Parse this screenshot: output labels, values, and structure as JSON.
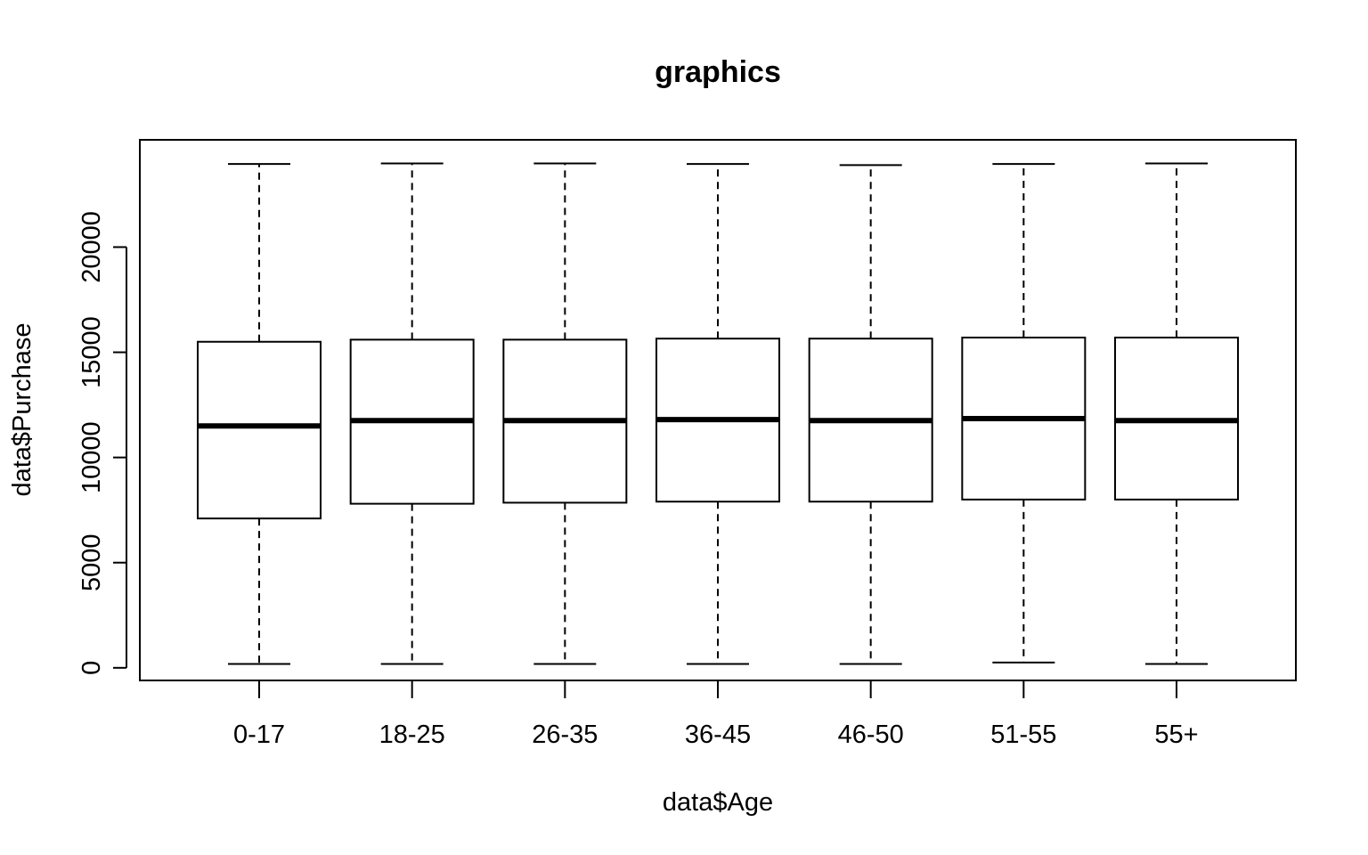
{
  "chart_data": {
    "type": "box",
    "title": "graphics",
    "xlabel": "data$Age",
    "ylabel": "data$Purchase",
    "categories": [
      "0-17",
      "18-25",
      "26-35",
      "36-45",
      "46-50",
      "51-55",
      "55+"
    ],
    "yticks": [
      0,
      5000,
      10000,
      15000,
      20000
    ],
    "ylim": [
      -600,
      25100
    ],
    "boxes": [
      {
        "category": "0-17",
        "whisker_low": 185,
        "q1": 7100,
        "median": 11500,
        "q3": 15500,
        "whisker_high": 23950
      },
      {
        "category": "18-25",
        "whisker_low": 185,
        "q1": 7800,
        "median": 11750,
        "q3": 15600,
        "whisker_high": 23980
      },
      {
        "category": "26-35",
        "whisker_low": 185,
        "q1": 7850,
        "median": 11750,
        "q3": 15600,
        "whisker_high": 23980
      },
      {
        "category": "36-45",
        "whisker_low": 185,
        "q1": 7900,
        "median": 11800,
        "q3": 15650,
        "whisker_high": 23950
      },
      {
        "category": "46-50",
        "whisker_low": 185,
        "q1": 7900,
        "median": 11750,
        "q3": 15650,
        "whisker_high": 23900
      },
      {
        "category": "51-55",
        "whisker_low": 250,
        "q1": 8000,
        "median": 11850,
        "q3": 15700,
        "whisker_high": 23950
      },
      {
        "category": "55+",
        "whisker_low": 185,
        "q1": 8000,
        "median": 11750,
        "q3": 15700,
        "whisker_high": 23980
      }
    ]
  }
}
